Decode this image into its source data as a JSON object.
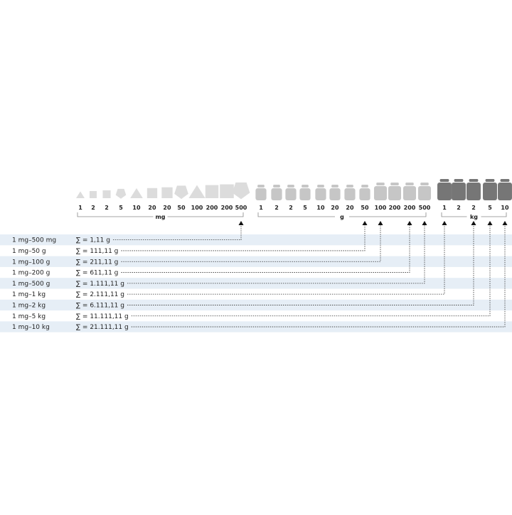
{
  "groups": [
    {
      "unit": "mg",
      "color": "#dcdcdc",
      "shapes": [
        "triangle",
        "square",
        "square",
        "pentagon",
        "triangle",
        "square",
        "square",
        "pentagon",
        "triangle",
        "square",
        "square",
        "pentagon"
      ],
      "labels": [
        "1",
        "2",
        "2",
        "5",
        "10",
        "20",
        "20",
        "50",
        "100",
        "200",
        "200",
        "500"
      ]
    },
    {
      "unit": "g",
      "color": "#c6c6c6",
      "shapes": [
        "weight",
        "weight",
        "weight",
        "weight",
        "weight",
        "weight",
        "weight",
        "weight",
        "weight",
        "weight",
        "weight",
        "weight"
      ],
      "labels": [
        "1",
        "2",
        "2",
        "5",
        "10",
        "20",
        "20",
        "50",
        "100",
        "200",
        "200",
        "500"
      ]
    },
    {
      "unit": "kg",
      "color": "#767676",
      "shapes": [
        "weight",
        "weight",
        "weight",
        "weight",
        "weight"
      ],
      "labels": [
        "1",
        "2",
        "2",
        "5",
        "10"
      ]
    }
  ],
  "rows": [
    {
      "range": "1 mg–500 mg",
      "sum": "∑ = 1,11 g",
      "target": "500 mg"
    },
    {
      "range": "1 mg–50 g",
      "sum": "∑ = 111,11 g",
      "target": "50 g"
    },
    {
      "range": "1 mg–100 g",
      "sum": "∑ = 211,11 g",
      "target": "100 g"
    },
    {
      "range": "1 mg–200 g",
      "sum": "∑ = 611,11 g",
      "target": "200 g"
    },
    {
      "range": "1 mg–500 g",
      "sum": "∑ = 1.111,11 g",
      "target": "500 g"
    },
    {
      "range": "1 mg–1 kg",
      "sum": "∑ = 2.111,11 g",
      "target": "1 kg"
    },
    {
      "range": "1 mg–2 kg",
      "sum": "∑ = 6.111,11 g",
      "target": "2 kg"
    },
    {
      "range": "1 mg–5 kg",
      "sum": "∑ = 11.111,11 g",
      "target": "5 kg"
    },
    {
      "range": "1 mg–10 kg",
      "sum": "∑ = 21.111,11 g",
      "target": "10 kg"
    }
  ],
  "row_shade": "#e6eef6"
}
